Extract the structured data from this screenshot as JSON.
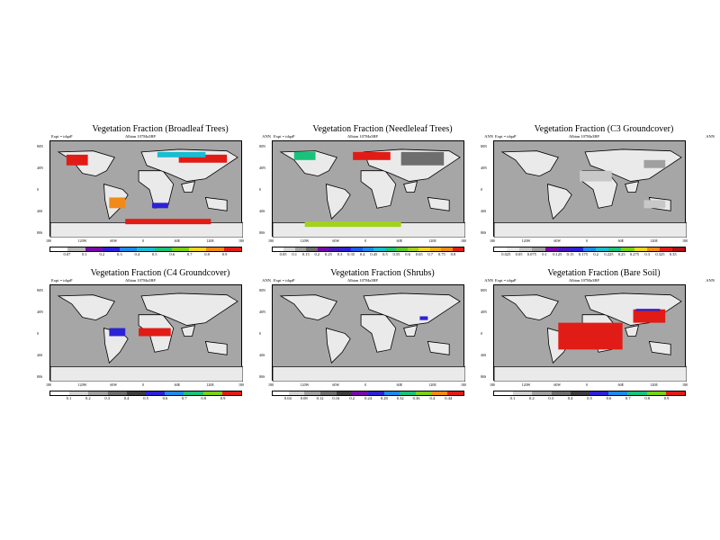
{
  "figure": {
    "experiment_label": "Expt = tdqaP",
    "period_label": "ANN"
  },
  "shared_axes": {
    "lat_labels": [
      "80N",
      "40N",
      "0",
      "40S",
      "80S"
    ],
    "lon_labels": [
      "180",
      "120W",
      "60W",
      "0",
      "60E",
      "120E",
      "180"
    ]
  },
  "chart_data": [
    {
      "type": "heatmap",
      "title": "Vegetation Fraction (Broadleaf Trees)",
      "age_label": "Albian  107Ma3BP",
      "colorbar_ticks": [
        "0.07",
        "0.1",
        "0.2",
        "0.3",
        "0.4",
        "0.5",
        "0.6",
        "0.7",
        "0.8",
        "0.9"
      ],
      "colorbar_colors": [
        "#ffffff",
        "#b7b7b7",
        "#7a0aa8",
        "#2b22d6",
        "#1c8be8",
        "#18bdd1",
        "#19c27a",
        "#7ad017",
        "#f2d61d",
        "#f08a18",
        "#e11c16"
      ],
      "land_fill": "#eaeaea",
      "patches": [
        {
          "region": "NE Asia",
          "color": "#e11c16",
          "lon": [
            60,
            150
          ],
          "lat": [
            50,
            65
          ]
        },
        {
          "region": "N America",
          "color": "#e11c16",
          "lon": [
            -150,
            -110
          ],
          "lat": [
            45,
            65
          ]
        },
        {
          "region": "Antarctica margin",
          "color": "#e11c16",
          "lon": [
            -40,
            120
          ],
          "lat": [
            -65,
            -55
          ]
        },
        {
          "region": "S America",
          "color": "#f08a18",
          "lon": [
            -70,
            -40
          ],
          "lat": [
            -35,
            -15
          ]
        },
        {
          "region": "Siberia",
          "color": "#18bdd1",
          "lon": [
            20,
            110
          ],
          "lat": [
            60,
            70
          ]
        },
        {
          "region": "S Africa",
          "color": "#2b22d6",
          "lon": [
            10,
            40
          ],
          "lat": [
            -35,
            -25
          ]
        }
      ]
    },
    {
      "type": "heatmap",
      "title": "Vegetation Fraction (Needleleaf Trees)",
      "age_label": "Albian  107Ma3BP",
      "colorbar_ticks": [
        "0.05",
        "0.1",
        "0.15",
        "0.2",
        "0.25",
        "0.3",
        "0.35",
        "0.4",
        "0.45",
        "0.5",
        "0.55",
        "0.6",
        "0.65",
        "0.7",
        "0.75",
        "0.8"
      ],
      "colorbar_colors": [
        "#ffffff",
        "#d2d2d2",
        "#a0a0a0",
        "#6e6e6e",
        "#7a0aa8",
        "#4a1ab8",
        "#2b22d6",
        "#1c5be8",
        "#1c8be8",
        "#18bdd1",
        "#19c27a",
        "#5ac82a",
        "#a2d21c",
        "#f2d61d",
        "#f0b018",
        "#f08a18",
        "#e11c16"
      ],
      "land_fill": "#eaeaea",
      "patches": [
        {
          "region": "N America",
          "color": "#19c27a",
          "lon": [
            -140,
            -100
          ],
          "lat": [
            55,
            70
          ]
        },
        {
          "region": "Siberia",
          "color": "#e11c16",
          "lon": [
            -30,
            40
          ],
          "lat": [
            55,
            70
          ]
        },
        {
          "region": "E Asia",
          "color": "#6e6e6e",
          "lon": [
            60,
            140
          ],
          "lat": [
            45,
            70
          ]
        },
        {
          "region": "Antarctica",
          "color": "#a2d21c",
          "lon": [
            -120,
            60
          ],
          "lat": [
            -70,
            -60
          ]
        }
      ]
    },
    {
      "type": "heatmap",
      "title": "Vegetation Fraction (C3 Groundcover)",
      "age_label": "Albian  107Ma3BP",
      "colorbar_ticks": [
        "0.025",
        "0.05",
        "0.075",
        "0.1",
        "0.125",
        "0.15",
        "0.175",
        "0.2",
        "0.225",
        "0.25",
        "0.275",
        "0.3",
        "0.325",
        "0.35"
      ],
      "colorbar_colors": [
        "#ffffff",
        "#e6e6e6",
        "#c8c8c8",
        "#a0a0a0",
        "#7a0aa8",
        "#4a1ab8",
        "#2b22d6",
        "#1c8be8",
        "#18bdd1",
        "#19c27a",
        "#7ad017",
        "#f2d61d",
        "#f08a18",
        "#e11c16",
        "#b01010"
      ],
      "land_fill": "#eaeaea",
      "patches": [
        {
          "region": "N Africa",
          "color": "#c8c8c8",
          "lon": [
            -20,
            40
          ],
          "lat": [
            15,
            35
          ]
        },
        {
          "region": "E Asia",
          "color": "#a0a0a0",
          "lon": [
            100,
            140
          ],
          "lat": [
            40,
            55
          ]
        },
        {
          "region": "Australia",
          "color": "#c8c8c8",
          "lon": [
            100,
            140
          ],
          "lat": [
            -35,
            -20
          ]
        }
      ]
    },
    {
      "type": "heatmap",
      "title": "Vegetation Fraction (C4 Groundcover)",
      "age_label": "Albian  107Ma3BP",
      "colorbar_ticks": [
        "0.1",
        "0.2",
        "0.3",
        "0.4",
        "0.5",
        "0.6",
        "0.7",
        "0.8",
        "0.9"
      ],
      "colorbar_colors": [
        "#ffffff",
        "#d2d2d2",
        "#a0a0a0",
        "#6e6e6e",
        "#3c3c3c",
        "#2b22d6",
        "#1c8be8",
        "#19c27a",
        "#7ad017",
        "#e11c16"
      ],
      "land_fill": "#eaeaea",
      "patches": [
        {
          "region": "N Africa",
          "color": "#e11c16",
          "lon": [
            -15,
            45
          ],
          "lat": [
            -5,
            10
          ]
        },
        {
          "region": "S America",
          "color": "#2b22d6",
          "lon": [
            -70,
            -40
          ],
          "lat": [
            -5,
            10
          ]
        }
      ]
    },
    {
      "type": "heatmap",
      "title": "Vegetation Fraction (Shrubs)",
      "age_label": "Albian  107Ma3BP",
      "colorbar_ticks": [
        "0.04",
        "0.08",
        "0.12",
        "0.16",
        "0.2",
        "0.24",
        "0.28",
        "0.32",
        "0.36",
        "0.4",
        "0.44"
      ],
      "colorbar_colors": [
        "#ffffff",
        "#d2d2d2",
        "#a0a0a0",
        "#6e6e6e",
        "#3c3c3c",
        "#7a0aa8",
        "#2b22d6",
        "#1c8be8",
        "#19c27a",
        "#7ad017",
        "#f08a18",
        "#e11c16"
      ],
      "land_fill": "#eaeaea",
      "patches": [
        {
          "region": "C Asia",
          "color": "#2b22d6",
          "lon": [
            95,
            110
          ],
          "lat": [
            25,
            32
          ]
        }
      ]
    },
    {
      "type": "heatmap",
      "title": "Vegetation Fraction (Bare Soil)",
      "age_label": "Albian  107Ma3BP",
      "colorbar_ticks": [
        "0.1",
        "0.2",
        "0.3",
        "0.4",
        "0.5",
        "0.6",
        "0.7",
        "0.8",
        "0.9"
      ],
      "colorbar_colors": [
        "#ffffff",
        "#d2d2d2",
        "#a0a0a0",
        "#6e6e6e",
        "#3c3c3c",
        "#2b22d6",
        "#1c8be8",
        "#19c27a",
        "#7ad017",
        "#e11c16"
      ],
      "land_fill": "#eaeaea",
      "patches": [
        {
          "region": "S America / Africa",
          "color": "#e11c16",
          "lon": [
            -60,
            60
          ],
          "lat": [
            -30,
            20
          ]
        },
        {
          "region": "C Asia",
          "color": "#e11c16",
          "lon": [
            80,
            140
          ],
          "lat": [
            20,
            45
          ]
        },
        {
          "region": "C Asia edge",
          "color": "#2b22d6",
          "lon": [
            85,
            130
          ],
          "lat": [
            42,
            46
          ]
        }
      ]
    }
  ]
}
